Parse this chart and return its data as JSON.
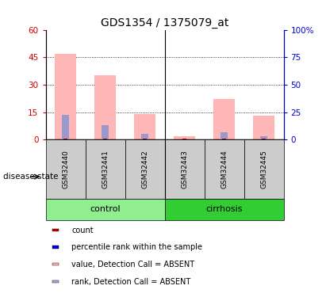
{
  "title": "GDS1354 / 1375079_at",
  "samples": [
    "GSM32440",
    "GSM32441",
    "GSM32442",
    "GSM32443",
    "GSM32444",
    "GSM32445"
  ],
  "groups": [
    "control",
    "control",
    "control",
    "cirrhosis",
    "cirrhosis",
    "cirrhosis"
  ],
  "group_colors": {
    "control": "#90EE90",
    "cirrhosis": "#32CD32"
  },
  "pink_values": [
    47,
    35,
    14,
    2,
    22,
    13
  ],
  "blue_values": [
    13.5,
    8.0,
    3.0,
    0.5,
    4.0,
    2.0
  ],
  "red_counts": [
    0.4,
    0.4,
    0.4,
    0.4,
    0.4,
    0.4
  ],
  "ylim_left": [
    0,
    60
  ],
  "ylim_right": [
    0,
    100
  ],
  "yticks_left": [
    0,
    15,
    30,
    45,
    60
  ],
  "yticks_right": [
    0,
    25,
    50,
    75,
    100
  ],
  "ytick_labels_left": [
    "0",
    "15",
    "30",
    "45",
    "60"
  ],
  "ytick_labels_right": [
    "0",
    "25",
    "50",
    "75",
    "100%"
  ],
  "left_axis_color": "#CC0000",
  "right_axis_color": "#0000CC",
  "pink_color": "#FFB6B6",
  "blue_color": "#9999CC",
  "red_color": "#CC0000",
  "legend_items": [
    {
      "label": "count",
      "color": "#CC0000"
    },
    {
      "label": "percentile rank within the sample",
      "color": "#0000CC"
    },
    {
      "label": "value, Detection Call = ABSENT",
      "color": "#FFB6B6"
    },
    {
      "label": "rank, Detection Call = ABSENT",
      "color": "#AAAADD"
    }
  ],
  "disease_state_label": "disease state",
  "title_fontsize": 10
}
